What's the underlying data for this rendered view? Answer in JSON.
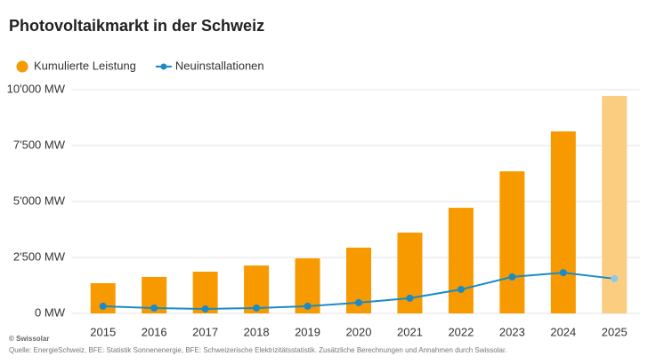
{
  "chart_data": {
    "type": "bar-line",
    "title": "Photovoltaikmarkt in der Schweiz",
    "categories": [
      "2015",
      "2016",
      "2017",
      "2018",
      "2019",
      "2020",
      "2021",
      "2022",
      "2023",
      "2024",
      "2025"
    ],
    "series": [
      {
        "name": "Kumulierte Leistung",
        "type": "bar",
        "color": "#f79a00",
        "colors": [
          "#f79a00",
          "#f79a00",
          "#f79a00",
          "#f79a00",
          "#f79a00",
          "#f79a00",
          "#f79a00",
          "#f79a00",
          "#f79a00",
          "#f79a00",
          "#fbcd80"
        ],
        "values": [
          1350,
          1630,
          1865,
          2140,
          2460,
          2940,
          3610,
          4720,
          6350,
          8135,
          9720
        ]
      },
      {
        "name": "Neuinstallationen",
        "type": "line",
        "color": "#1a8bc6",
        "colors": [
          "#1a8bc6",
          "#1a8bc6",
          "#1a8bc6",
          "#1a8bc6",
          "#1a8bc6",
          "#1a8bc6",
          "#1a8bc6",
          "#1a8bc6",
          "#1a8bc6",
          "#1a8bc6",
          "#8cc8e8"
        ],
        "values": [
          320,
          240,
          200,
          240,
          320,
          480,
          680,
          1070,
          1630,
          1820,
          1550
        ]
      }
    ],
    "ylim": [
      0,
      10000
    ],
    "yticks": [
      {
        "value": 0,
        "label": "0 MW"
      },
      {
        "value": 2500,
        "label": "2'500 MW"
      },
      {
        "value": 5000,
        "label": "5'000 MW"
      },
      {
        "value": 7500,
        "label": "7'500 MW"
      },
      {
        "value": 10000,
        "label": "10'000 MW"
      }
    ],
    "grid": true,
    "credit": "© Swissolar",
    "source": "Quelle: EnergieSchweiz, BFE: Statistik Sonnenenergie, BFE: Schweizerische Elektrizitätsstatistik. Zusätzliche Berechnungen und Annahmen durch Swissolar."
  }
}
